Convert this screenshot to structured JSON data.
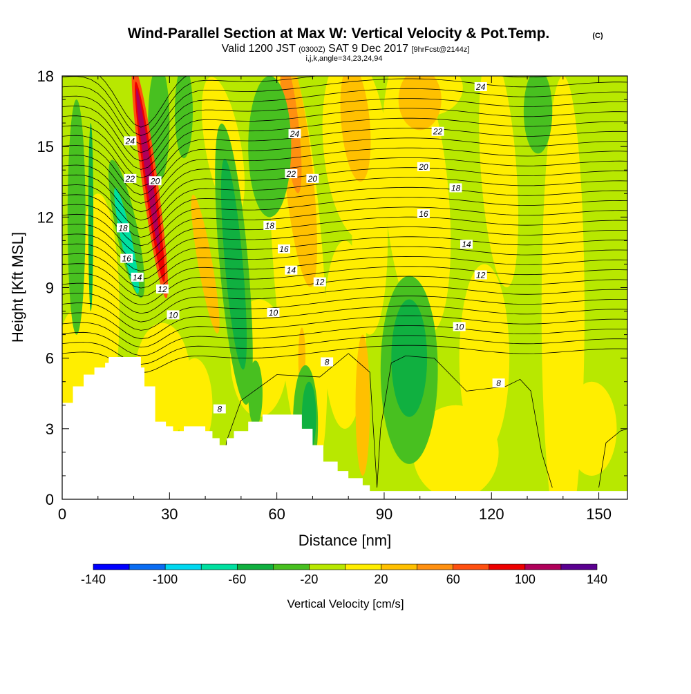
{
  "chart_data": {
    "type": "heatmap",
    "title": "Wind-Parallel Section at Max W: Vertical Velocity & Pot.Temp.",
    "title_mark": "(C)",
    "subtitle_main": "Valid 1200 JST",
    "subtitle_utc": "(0300Z)",
    "subtitle_date": "SAT 9 Dec 2017",
    "subtitle_fcst": "[9hrFcst@2144z]",
    "section_info": "i,j,k,angle=34,23,24,94",
    "xlabel": "Distance [nm]",
    "ylabel": "Height [Kft MSL]",
    "xlim": [
      0,
      158
    ],
    "ylim": [
      0,
      18
    ],
    "x_ticks": [
      "0",
      "30",
      "60",
      "90",
      "120",
      "150"
    ],
    "y_ticks": [
      "0",
      "3",
      "6",
      "9",
      "12",
      "15",
      "18"
    ],
    "colorbar": {
      "title": "Vertical Velocity [cm/s]",
      "tick_labels": [
        "-140",
        "-100",
        "-60",
        "-20",
        "20",
        "60",
        "100",
        "140"
      ],
      "bounds": [
        -140,
        -120,
        -100,
        -80,
        -60,
        -40,
        -20,
        0,
        20,
        40,
        60,
        80,
        100,
        120,
        140
      ],
      "colors": [
        "#0000ff",
        "#0a6cf2",
        "#00d8f0",
        "#00e0a0",
        "#10b040",
        "#48c020",
        "#b8e800",
        "#ffee00",
        "#ffc000",
        "#ff9010",
        "#ff5010",
        "#ee0000",
        "#b0005a",
        "#5a0090"
      ]
    },
    "theta_contour_labels": [
      "8",
      "10",
      "12",
      "14",
      "16",
      "18",
      "20",
      "22",
      "24"
    ],
    "theta_contour_levels_K": [
      8,
      10,
      12,
      14,
      16,
      18,
      20,
      22,
      24
    ],
    "terrain_kft": [
      [
        0,
        4.1
      ],
      [
        3,
        4.8
      ],
      [
        6,
        5.3
      ],
      [
        9,
        5.6
      ],
      [
        12,
        5.8
      ],
      [
        13,
        6.05
      ],
      [
        19,
        6.05
      ],
      [
        22,
        5.6
      ],
      [
        23,
        4.8
      ],
      [
        26,
        3.3
      ],
      [
        29,
        3.1
      ],
      [
        31,
        2.9
      ],
      [
        34,
        3.1
      ],
      [
        37,
        3.1
      ],
      [
        40,
        2.9
      ],
      [
        42,
        2.6
      ],
      [
        44,
        2.3
      ],
      [
        46,
        2.6
      ],
      [
        48,
        2.9
      ],
      [
        52,
        3.3
      ],
      [
        56,
        3.6
      ],
      [
        64,
        3.6
      ],
      [
        67,
        3.0
      ],
      [
        70,
        2.3
      ],
      [
        73,
        1.6
      ],
      [
        77,
        1.2
      ],
      [
        80,
        0.9
      ],
      [
        84,
        0.6
      ],
      [
        86,
        0.35
      ],
      [
        158,
        0.35
      ]
    ],
    "w_field_note": "Vertical velocity (cm/s) shading; strongest updraft ~100 near x=25 nm, 10-18 kft; downdraft ~-80 near x=18 nm, 9-13 kft",
    "w_features": [
      {
        "x": 25,
        "y": 14.5,
        "w": 100
      },
      {
        "x": 18,
        "y": 11,
        "w": -80
      },
      {
        "x": 48,
        "y": 10,
        "w": -50
      },
      {
        "x": 66,
        "y": 14,
        "w": 45
      },
      {
        "x": 97,
        "y": 5.5,
        "w": -45
      },
      {
        "x": 70,
        "y": 3.5,
        "w": -55
      }
    ]
  }
}
